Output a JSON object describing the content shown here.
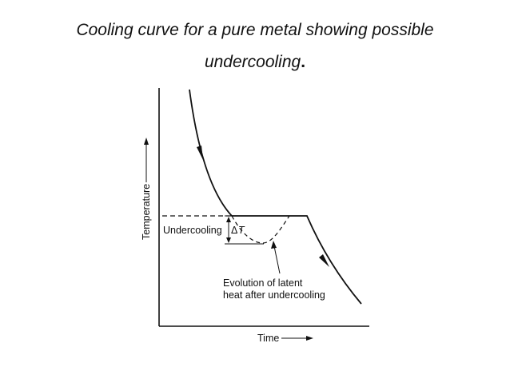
{
  "title": {
    "line1": "Cooling curve for a pure metal showing possible",
    "line2": "undercooling",
    "line2_punct": "."
  },
  "diagram": {
    "y_axis_label": "Temperature",
    "x_axis_label": "Time",
    "undercooling_label": "Undercooling",
    "delta_symbol": "Δ",
    "t_symbol": "T",
    "evolution_line1": "Evolution of latent",
    "evolution_line2": "heat after undercooling"
  }
}
